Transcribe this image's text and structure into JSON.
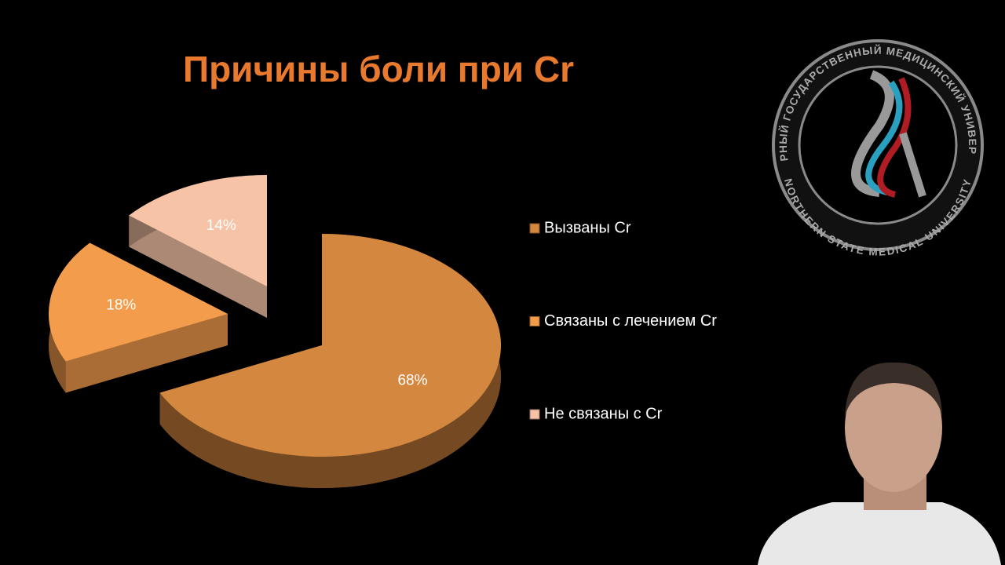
{
  "chart_data": {
    "type": "pie",
    "title": "Причины боли при Cr",
    "categories": [
      "Вызваны Cr",
      "Связаны с лечением Cr",
      "Не связаны с Cr"
    ],
    "values": [
      68,
      18,
      14
    ],
    "value_labels": [
      "68%",
      "18%",
      "14%"
    ],
    "colors": [
      "#d4873f",
      "#f39c4c",
      "#f6c3a6"
    ],
    "legend": "right"
  },
  "logo": {
    "top_text": "СЕВЕРНЫЙ ГОСУДАРСТВЕННЫЙ МЕДИЦИНСКИЙ УНИВЕРСИТЕТ",
    "bottom_text": "NORTHERN STATE MEDICAL UNIVERSITY"
  }
}
